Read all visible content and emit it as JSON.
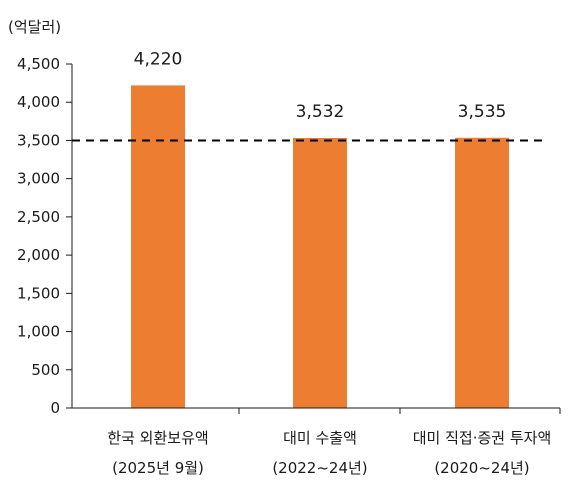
{
  "chart_data": {
    "type": "bar",
    "unit_label": "(억달러)",
    "categories": [
      {
        "line1": "한국 외환보유액",
        "line2": "(2025년 9월)"
      },
      {
        "line1": "대미 수출액",
        "line2": "(2022~24년)"
      },
      {
        "line1": "대미 직접·증권 투자액",
        "line2": "(2020~24년)"
      }
    ],
    "values": [
      4220,
      3532,
      3535
    ],
    "value_labels": [
      "4,220",
      "3,532",
      "3,535"
    ],
    "ylim": [
      0,
      4500
    ],
    "yticks": [
      {
        "value": 0,
        "label": "0"
      },
      {
        "value": 500,
        "label": "500"
      },
      {
        "value": 1000,
        "label": "1,000"
      },
      {
        "value": 1500,
        "label": "1,500"
      },
      {
        "value": 2000,
        "label": "2,000"
      },
      {
        "value": 2500,
        "label": "2,500"
      },
      {
        "value": 3000,
        "label": "3,000"
      },
      {
        "value": 3500,
        "label": "3,500"
      },
      {
        "value": 4000,
        "label": "4,000"
      },
      {
        "value": 4500,
        "label": "4,500"
      }
    ],
    "reference_line": {
      "value": 3500,
      "style": "dashed",
      "color": "#000000"
    },
    "bar_color": "#ED7D31",
    "grid": false,
    "legend": "none"
  }
}
